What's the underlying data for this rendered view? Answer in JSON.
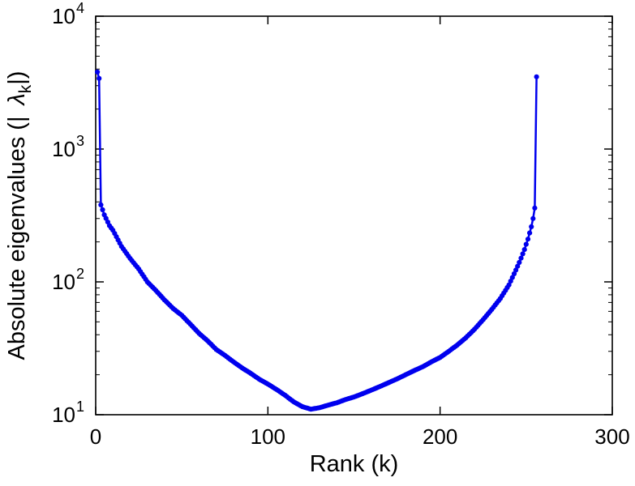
{
  "chart_data": {
    "type": "line",
    "title": "",
    "xlabel": "Rank (k)",
    "ylabel_parts": {
      "prefix": "Absolute eigenvalues (|",
      "symbol": "λ",
      "subscript": "k",
      "suffix": "|)"
    },
    "xlim": [
      0,
      300
    ],
    "ylim": [
      10,
      10000
    ],
    "yscale": "log",
    "grid": false,
    "legend": null,
    "x_ticks": [
      0,
      100,
      200,
      300
    ],
    "y_tick_base": "10",
    "y_tick_exponents": [
      1,
      2,
      3,
      4
    ],
    "line_color": "#0000ee",
    "axis_color": "#000000",
    "marker": "dot",
    "series": [
      {
        "name": "absolute-eigenvalues",
        "x": [
          1,
          2,
          3,
          5,
          8,
          10,
          15,
          20,
          25,
          30,
          35,
          40,
          45,
          50,
          55,
          60,
          65,
          70,
          75,
          80,
          85,
          90,
          95,
          100,
          105,
          110,
          115,
          120,
          125,
          130,
          135,
          140,
          145,
          150,
          155,
          160,
          165,
          170,
          175,
          180,
          185,
          190,
          195,
          200,
          205,
          210,
          215,
          220,
          225,
          230,
          235,
          240,
          243,
          246,
          249,
          251,
          253,
          254,
          255,
          256
        ],
        "y": [
          3800,
          3400,
          380,
          320,
          265,
          245,
          185,
          150,
          125,
          100,
          86,
          73,
          63,
          56,
          48,
          41,
          36,
          31,
          28,
          25,
          22.5,
          20.5,
          18.5,
          17,
          15.5,
          14,
          12.5,
          11.5,
          11,
          11.3,
          11.8,
          12.3,
          13,
          13.6,
          14.4,
          15.3,
          16.3,
          17.4,
          18.6,
          20,
          21.5,
          23,
          25,
          27,
          30,
          33.5,
          38,
          44,
          52,
          62,
          75,
          95,
          115,
          140,
          175,
          210,
          260,
          300,
          360,
          3500
        ]
      }
    ]
  }
}
